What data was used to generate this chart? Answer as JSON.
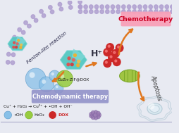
{
  "bg_color": "#e8eaf2",
  "membrane_color": "#b0a0d0",
  "chemotherapy_box_color": "#f8a0b8",
  "chemotherapy_text": "Chemotherapy",
  "chemodynamic_box_color": "#9090c8",
  "chemodynamic_text": "Chemodynamic therapy",
  "fenton_text": "Fenton-like reaction",
  "apoptosis_text": "Apoptosis",
  "hplus_text": "H⁺",
  "cuznzif_text": "CuZn-ZIF@DOX",
  "equation_text": "Cu⁺ + H₂O₂ → Cu²⁺ + •OH + OH⁻",
  "legend_oh_text": "•OH",
  "legend_h2o2_text": "H₂O₂",
  "legend_dox_text": "DOX",
  "crystal_face_color": "#50c8c0",
  "crystal_top_color": "#80d8d8",
  "crystal_side_color": "#40b8b8",
  "crystal_dot_colors": [
    "#e05050",
    "#f0b030",
    "#e8c050",
    "#d04040",
    "#e06868"
  ],
  "bubble_blue": "#88c0e8",
  "bubble_blue_dark": "#5898c8",
  "bubble_green": "#98cc40",
  "bubble_green_dark": "#70a820",
  "dox_color": "#cc2828",
  "mitochondria_color": "#98c030",
  "mitochondria_dark": "#70a020",
  "arrow_color": "#e07820",
  "cell_outer": "#b8ccd8",
  "cell_inner": "#d8e8f0",
  "apoptosis_color": "#333333",
  "fenton_color": "#222244",
  "bottom_text_color": "#111111"
}
